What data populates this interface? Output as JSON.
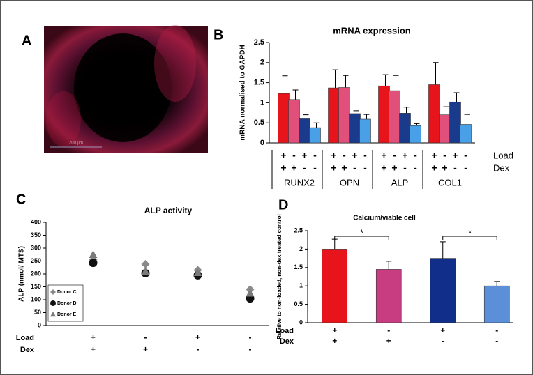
{
  "image_panel": {
    "label": "A",
    "scale_bar": "200 µm"
  },
  "chart_data": [
    {
      "type": "bar",
      "panel_label": "B",
      "title": "mRNA expression",
      "y_label": "mRNA normalised to GAPDH",
      "categories": [
        "RUNX2",
        "OPN",
        "ALP",
        "COL1"
      ],
      "series": [
        {
          "color": "#e8141c",
          "values": [
            1.23,
            1.37,
            1.42,
            1.45
          ],
          "errors": [
            0.44,
            0.45,
            0.28,
            0.55
          ]
        },
        {
          "color": "#e0507a",
          "values": [
            1.08,
            1.38,
            1.3,
            0.7
          ],
          "errors": [
            0.24,
            0.3,
            0.38,
            0.2
          ]
        },
        {
          "color": "#1a3a8c",
          "values": [
            0.6,
            0.73,
            0.74,
            1.02
          ],
          "errors": [
            0.1,
            0.07,
            0.15,
            0.23
          ]
        },
        {
          "color": "#4aa0e6",
          "values": [
            0.38,
            0.59,
            0.43,
            0.46
          ],
          "errors": [
            0.12,
            0.12,
            0.05,
            0.25
          ]
        }
      ],
      "ylim": [
        0,
        2.5
      ],
      "yticks": [
        0,
        0.5,
        1,
        1.5,
        2,
        2.5
      ],
      "conditions": [
        {
          "name": "Load",
          "values": [
            "+",
            "-",
            "+",
            "-"
          ]
        },
        {
          "name": "Dex",
          "values": [
            "+",
            "+",
            "-",
            "-"
          ]
        }
      ]
    },
    {
      "type": "scatter",
      "panel_label": "C",
      "title": "ALP activity",
      "y_label": "ALP (nmol/ MTS)",
      "series": [
        {
          "name": "Donor C",
          "color": "#8a8a8a",
          "marker": "diamond",
          "values": [
            255,
            238,
            215,
            140
          ]
        },
        {
          "name": "Donor D",
          "color": "#111111",
          "marker": "circle",
          "values": [
            243,
            203,
            195,
            105
          ]
        },
        {
          "name": "Donor E",
          "color": "#7a7a7a",
          "marker": "triangle",
          "values": [
            275,
            210,
            205,
            125
          ]
        }
      ],
      "ylim": [
        0,
        400
      ],
      "yticks": [
        0,
        50,
        100,
        150,
        200,
        250,
        300,
        350,
        400
      ],
      "legend": "lower left",
      "conditions": [
        {
          "name": "Load",
          "values": [
            "+",
            "-",
            "+",
            "-"
          ]
        },
        {
          "name": "Dex",
          "values": [
            "+",
            "+",
            "-",
            "-"
          ]
        }
      ]
    },
    {
      "type": "bar",
      "panel_label": "D",
      "title": "Calcium/viable cell",
      "y_label": "Relative to non-loaded, non-dex treated control",
      "series": [
        {
          "colors": [
            "#e8141c",
            "#c83c82",
            "#102e8a",
            "#5b8fd8"
          ],
          "values": [
            2.0,
            1.45,
            1.75,
            1.0
          ],
          "errors": [
            0.27,
            0.22,
            0.45,
            0.12
          ]
        }
      ],
      "ylim": [
        0,
        2.5
      ],
      "yticks": [
        0,
        0.5,
        1,
        1.5,
        2,
        2.5
      ],
      "significance": [
        {
          "from": 0,
          "to": 1,
          "label": "*"
        },
        {
          "from": 2,
          "to": 3,
          "label": "*"
        }
      ],
      "conditions": [
        {
          "name": "Load",
          "values": [
            "+",
            "-",
            "+",
            "-"
          ]
        },
        {
          "name": "Dex",
          "values": [
            "+",
            "+",
            "-",
            "-"
          ]
        }
      ]
    }
  ]
}
